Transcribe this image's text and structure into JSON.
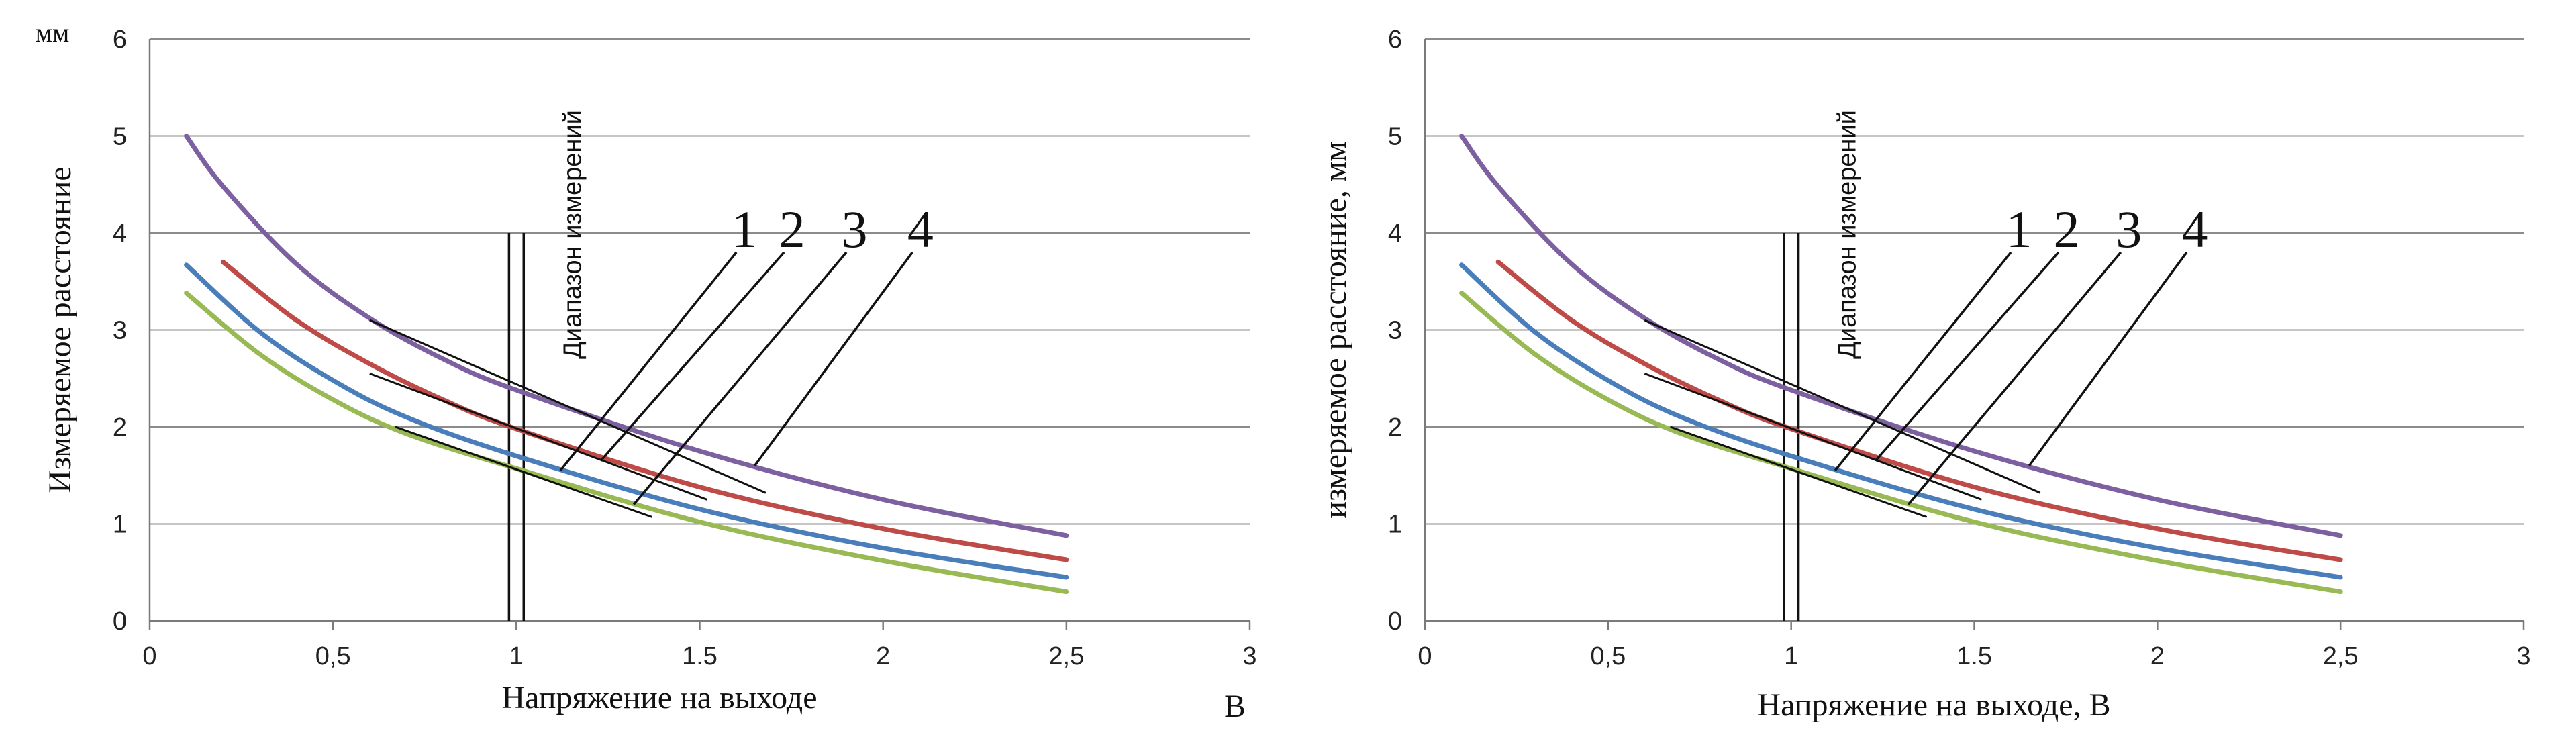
{
  "chart_data": [
    {
      "type": "line",
      "ylabel": "Измеряемое расстояние",
      "y_unit": "мм",
      "xlabel": "Напряжение на выходе",
      "x_unit": "В",
      "xlim": [
        0,
        3
      ],
      "ylim": [
        0,
        6
      ],
      "x_ticks": [
        "0",
        "0,5",
        "1",
        "1.5",
        "2",
        "2,5",
        "3"
      ],
      "y_ticks": [
        "0",
        "1",
        "2",
        "3",
        "4",
        "5",
        "6"
      ],
      "grid": "horizontal",
      "range_label": "Диапазон измерений",
      "range_x": [
        0.98,
        1.02
      ],
      "range_y": [
        0,
        4
      ],
      "callout_labels": [
        "1",
        "2",
        "3",
        "4"
      ],
      "series": [
        {
          "color": "#4a7ebb",
          "x": [
            0.1,
            0.3,
            0.5,
            0.7,
            1.0,
            1.5,
            2.0,
            2.5
          ],
          "y": [
            3.67,
            2.98,
            2.48,
            2.1,
            1.7,
            1.15,
            0.75,
            0.45
          ]
        },
        {
          "color": "#be4b48",
          "x": [
            0.2,
            0.4,
            0.6,
            0.8,
            1.0,
            1.5,
            2.0,
            2.5
          ],
          "y": [
            3.7,
            3.1,
            2.65,
            2.28,
            1.98,
            1.38,
            0.95,
            0.63
          ]
        },
        {
          "color": "#98b954",
          "x": [
            0.1,
            0.3,
            0.5,
            0.7,
            1.0,
            1.5,
            2.0,
            2.5
          ],
          "y": [
            3.38,
            2.75,
            2.28,
            1.93,
            1.57,
            1.02,
            0.62,
            0.3
          ]
        },
        {
          "color": "#7d60a0",
          "x": [
            0.1,
            0.2,
            0.4,
            0.6,
            0.8,
            1.0,
            1.5,
            2.0,
            2.5
          ],
          "y": [
            5.0,
            4.48,
            3.68,
            3.12,
            2.7,
            2.38,
            1.75,
            1.25,
            0.88
          ]
        }
      ],
      "tangents": [
        {
          "from": [
            0.6,
            3.1
          ],
          "to": [
            1.68,
            1.32
          ]
        },
        {
          "from": [
            0.6,
            2.55
          ],
          "to": [
            1.52,
            1.25
          ]
        },
        {
          "from": [
            0.67,
            2.0
          ],
          "to": [
            1.37,
            1.07
          ]
        }
      ],
      "callouts": [
        {
          "label_index": 0,
          "label_at": [
            1.6,
            3.8
          ],
          "tip": [
            1.12,
            1.55
          ]
        },
        {
          "label_index": 1,
          "label_at": [
            1.73,
            3.8
          ],
          "tip": [
            1.23,
            1.65
          ]
        },
        {
          "label_index": 2,
          "label_at": [
            1.9,
            3.8
          ],
          "tip": [
            1.32,
            1.2
          ]
        },
        {
          "label_index": 3,
          "label_at": [
            2.08,
            3.8
          ],
          "tip": [
            1.65,
            1.6
          ]
        }
      ]
    },
    {
      "type": "line",
      "ylabel": "измеряемое расстояние, мм",
      "xlabel": "Напряжение на выходе, В",
      "xlim": [
        0,
        3
      ],
      "ylim": [
        0,
        6
      ],
      "x_ticks": [
        "0",
        "0,5",
        "1",
        "1.5",
        "2",
        "2,5",
        "3"
      ],
      "y_ticks": [
        "0",
        "1",
        "2",
        "3",
        "4",
        "5",
        "6"
      ],
      "grid": "horizontal",
      "range_label": "Диапазон измерений",
      "range_x": [
        0.98,
        1.02
      ],
      "range_y": [
        0,
        4
      ],
      "callout_labels": [
        "1",
        "2",
        "3",
        "4"
      ],
      "series": [
        {
          "color": "#4a7ebb",
          "x": [
            0.1,
            0.3,
            0.5,
            0.7,
            1.0,
            1.5,
            2.0,
            2.5
          ],
          "y": [
            3.67,
            2.98,
            2.48,
            2.1,
            1.7,
            1.15,
            0.75,
            0.45
          ]
        },
        {
          "color": "#be4b48",
          "x": [
            0.2,
            0.4,
            0.6,
            0.8,
            1.0,
            1.5,
            2.0,
            2.5
          ],
          "y": [
            3.7,
            3.1,
            2.65,
            2.28,
            1.98,
            1.38,
            0.95,
            0.63
          ]
        },
        {
          "color": "#98b954",
          "x": [
            0.1,
            0.3,
            0.5,
            0.7,
            1.0,
            1.5,
            2.0,
            2.5
          ],
          "y": [
            3.38,
            2.75,
            2.28,
            1.93,
            1.57,
            1.02,
            0.62,
            0.3
          ]
        },
        {
          "color": "#7d60a0",
          "x": [
            0.1,
            0.2,
            0.4,
            0.6,
            0.8,
            1.0,
            1.5,
            2.0,
            2.5
          ],
          "y": [
            5.0,
            4.48,
            3.68,
            3.12,
            2.7,
            2.38,
            1.75,
            1.25,
            0.88
          ]
        }
      ],
      "tangents": [
        {
          "from": [
            0.6,
            3.1
          ],
          "to": [
            1.68,
            1.32
          ]
        },
        {
          "from": [
            0.6,
            2.55
          ],
          "to": [
            1.52,
            1.25
          ]
        },
        {
          "from": [
            0.67,
            2.0
          ],
          "to": [
            1.37,
            1.07
          ]
        }
      ],
      "callouts": [
        {
          "label_index": 0,
          "label_at": [
            1.6,
            3.8
          ],
          "tip": [
            1.12,
            1.55
          ]
        },
        {
          "label_index": 1,
          "label_at": [
            1.73,
            3.8
          ],
          "tip": [
            1.23,
            1.65
          ]
        },
        {
          "label_index": 2,
          "label_at": [
            1.9,
            3.8
          ],
          "tip": [
            1.32,
            1.2
          ]
        },
        {
          "label_index": 3,
          "label_at": [
            2.08,
            3.8
          ],
          "tip": [
            1.65,
            1.6
          ]
        }
      ]
    }
  ]
}
